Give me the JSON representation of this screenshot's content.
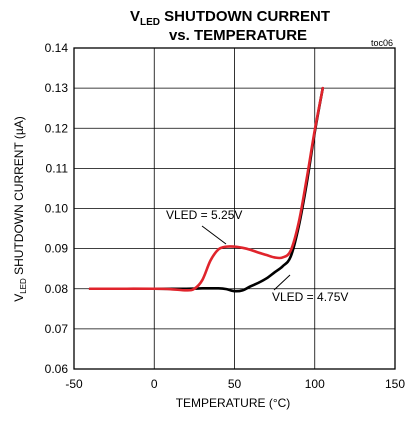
{
  "chart_data": {
    "type": "line",
    "title": {
      "line1_prefix": "V",
      "line1_sub": "LED",
      "line1_suffix": " SHUTDOWN CURRENT",
      "line2": "vs. TEMPERATURE"
    },
    "tag": "toc06",
    "xlabel": "TEMPERATURE (°C)",
    "ylabel": {
      "prefix": "V",
      "sub": "LED",
      "suffix": " SHUTDOWN CURRENT (µA)"
    },
    "xlim": [
      -50,
      150
    ],
    "ylim": [
      0.06,
      0.14
    ],
    "x_ticks": [
      -50,
      0,
      50,
      100,
      150
    ],
    "x_tick_labels": [
      "-50",
      "0",
      "50",
      "100",
      "150"
    ],
    "y_ticks": [
      0.06,
      0.07,
      0.08,
      0.09,
      0.1,
      0.11,
      0.12,
      0.13,
      0.14
    ],
    "y_tick_labels": [
      "0.06",
      "0.07",
      "0.08",
      "0.09",
      "0.10",
      "0.11",
      "0.12",
      "0.13",
      "0.14"
    ],
    "grid": true,
    "series": [
      {
        "name": "VLED = 4.75V",
        "color": "#000000",
        "x": [
          -40,
          -20,
          0,
          20,
          30,
          40,
          45,
          50,
          55,
          60,
          65,
          70,
          75,
          80,
          85,
          90,
          95,
          100,
          105
        ],
        "y": [
          0.08,
          0.08,
          0.08,
          0.08,
          0.0801,
          0.0801,
          0.0799,
          0.0794,
          0.0796,
          0.0806,
          0.0815,
          0.0826,
          0.0841,
          0.0856,
          0.088,
          0.0955,
          0.1063,
          0.119,
          0.13
        ]
      },
      {
        "name": "VLED = 5.25V",
        "color": "#e0242c",
        "x": [
          -40,
          -20,
          0,
          10,
          20,
          25,
          30,
          35,
          40,
          45,
          50,
          55,
          60,
          65,
          70,
          75,
          80,
          85,
          90,
          95,
          100,
          105
        ],
        "y": [
          0.08,
          0.08,
          0.08,
          0.0799,
          0.0796,
          0.08,
          0.0822,
          0.087,
          0.0898,
          0.0905,
          0.0905,
          0.0902,
          0.0897,
          0.089,
          0.0884,
          0.0878,
          0.0878,
          0.0895,
          0.0965,
          0.1075,
          0.1195,
          0.13
        ]
      }
    ],
    "annotations": [
      {
        "text": "VLED = 5.25V",
        "series": 1
      },
      {
        "text": "VLED = 4.75V",
        "series": 0
      }
    ]
  }
}
